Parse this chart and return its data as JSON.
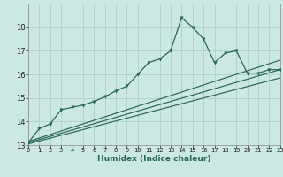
{
  "bg_color": "#cce8e4",
  "grid_color": "#b0d0cc",
  "line_color": "#2a6655",
  "xlabel": "Humidex (Indice chaleur)",
  "ylim": [
    13,
    19
  ],
  "xlim": [
    0,
    23
  ],
  "yticks": [
    13,
    14,
    15,
    16,
    17,
    18
  ],
  "xticks": [
    0,
    1,
    2,
    3,
    4,
    5,
    6,
    7,
    8,
    9,
    10,
    11,
    12,
    13,
    14,
    15,
    16,
    17,
    18,
    19,
    20,
    21,
    22,
    23
  ],
  "main_x": [
    0,
    1,
    2,
    3,
    4,
    5,
    6,
    7,
    8,
    9,
    10,
    11,
    12,
    13,
    14,
    15,
    16,
    17,
    18,
    19,
    20,
    21,
    22,
    23
  ],
  "main_y": [
    13.1,
    13.7,
    13.9,
    14.5,
    14.6,
    14.7,
    14.85,
    15.05,
    15.3,
    15.5,
    16.0,
    16.5,
    16.65,
    17.0,
    18.4,
    18.0,
    17.5,
    16.5,
    16.9,
    17.0,
    16.05,
    16.05,
    16.2,
    16.2
  ],
  "trend1_x": [
    0,
    23
  ],
  "trend1_y": [
    13.1,
    16.2
  ],
  "trend2_x": [
    0,
    23
  ],
  "trend2_y": [
    13.05,
    15.85
  ],
  "trend3_x": [
    0,
    23
  ],
  "trend3_y": [
    13.15,
    16.6
  ]
}
